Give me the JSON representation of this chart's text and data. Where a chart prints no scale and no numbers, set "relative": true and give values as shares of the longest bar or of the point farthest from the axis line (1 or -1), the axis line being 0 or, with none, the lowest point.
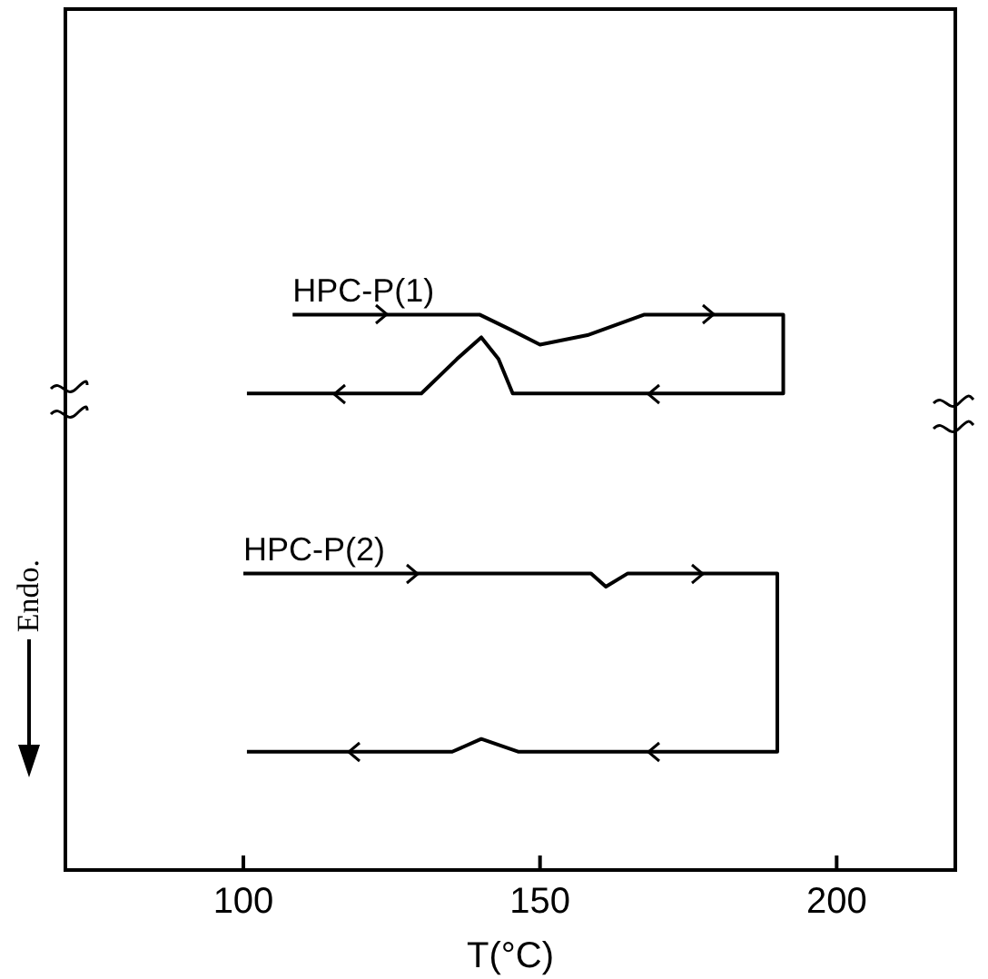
{
  "chart_data": {
    "type": "line",
    "relative": true,
    "xlabel": "T(°C)",
    "ylabel": "Endo.",
    "xlim": [
      70,
      220
    ],
    "xticks": [
      100,
      150,
      200
    ],
    "tick_labels": "x",
    "grid": false,
    "legend": false,
    "marker": "none",
    "line_style": "solid",
    "series": [
      {
        "name": "HPC-P(1)",
        "color": "#000000",
        "x": [
          108.3,
          139.8,
          145,
          150,
          158,
          167.6,
          191,
          191,
          145.4,
          143,
          140.1,
          136,
          130,
          100.6
        ],
        "values": [
          1,
          1,
          0.973,
          0.946,
          0.963,
          1,
          1,
          0.858,
          0.858,
          0.92,
          0.959,
          0.92,
          0.858,
          0.858
        ]
      },
      {
        "name": "HPC-P(2)",
        "color": "#000000",
        "x": [
          100,
          158.6,
          161.1,
          164.8,
          190,
          190,
          146.3,
          140.1,
          135.2,
          100.6
        ],
        "values": [
          0.534,
          0.534,
          0.51,
          0.534,
          0.534,
          0.213,
          0.213,
          0.236,
          0.213,
          0.213
        ]
      }
    ]
  }
}
